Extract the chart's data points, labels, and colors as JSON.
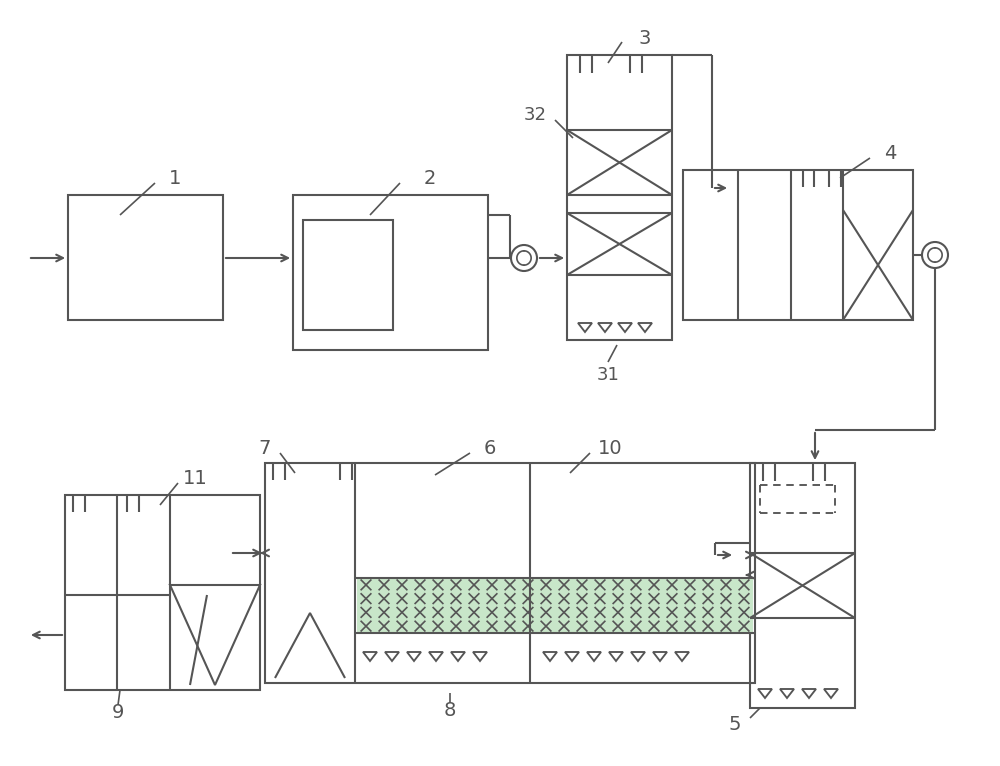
{
  "bg_color": "#ffffff",
  "line_color": "#555555",
  "green_color": "#4a9a4a",
  "line_width": 1.5
}
